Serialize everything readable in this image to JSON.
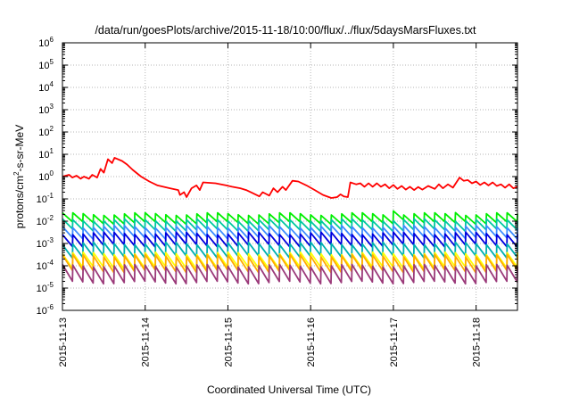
{
  "chart_data": {
    "type": "line",
    "title": "/data/run/goesPlots/archive/2015-11-18/10:00/flux/../flux/5daysMarsFluxes.txt",
    "xlabel": "Coordinated Universal Time (UTC)",
    "ylabel": {
      "prefix": "protons/cm",
      "sup": "2",
      "suffix": "-s-sr-MeV"
    },
    "y_scale": "log",
    "ylim_exponents": [
      -6,
      6
    ],
    "y_tick_labels": [
      {
        "base": "10",
        "exp": "-6"
      },
      {
        "base": "10",
        "exp": "-5"
      },
      {
        "base": "10",
        "exp": "-4"
      },
      {
        "base": "10",
        "exp": "-3"
      },
      {
        "base": "10",
        "exp": "-2"
      },
      {
        "base": "10",
        "exp": "-1"
      },
      {
        "base": "10",
        "exp": "0"
      },
      {
        "base": "10",
        "exp": "1"
      },
      {
        "base": "10",
        "exp": "2"
      },
      {
        "base": "10",
        "exp": "3"
      },
      {
        "base": "10",
        "exp": "4"
      },
      {
        "base": "10",
        "exp": "5"
      },
      {
        "base": "10",
        "exp": "6"
      }
    ],
    "x_domain_days": [
      0,
      5.5
    ],
    "x_ticks": [
      {
        "day": 0,
        "label": "2015-11-13"
      },
      {
        "day": 1,
        "label": "2015-11-14"
      },
      {
        "day": 2,
        "label": "2015-11-15"
      },
      {
        "day": 3,
        "label": "2015-11-16"
      },
      {
        "day": 4,
        "label": "2015-11-17"
      },
      {
        "day": 5,
        "label": "2015-11-18"
      }
    ],
    "grid": true,
    "legend": "none",
    "series": [
      {
        "color": "#ff0000",
        "width": 1.8,
        "points": [
          [
            0.0,
            1.0
          ],
          [
            0.08,
            1.2
          ],
          [
            0.12,
            0.9
          ],
          [
            0.17,
            1.1
          ],
          [
            0.22,
            0.8
          ],
          [
            0.26,
            1.0
          ],
          [
            0.32,
            0.8
          ],
          [
            0.36,
            1.2
          ],
          [
            0.42,
            0.9
          ],
          [
            0.46,
            2.2
          ],
          [
            0.5,
            1.5
          ],
          [
            0.55,
            6.0
          ],
          [
            0.6,
            4.0
          ],
          [
            0.63,
            7.0
          ],
          [
            0.72,
            5.0
          ],
          [
            0.78,
            3.5
          ],
          [
            0.85,
            2.0
          ],
          [
            0.95,
            1.0
          ],
          [
            1.05,
            0.6
          ],
          [
            1.15,
            0.4
          ],
          [
            1.3,
            0.3
          ],
          [
            1.4,
            0.25
          ],
          [
            1.42,
            0.15
          ],
          [
            1.47,
            0.2
          ],
          [
            1.5,
            0.12
          ],
          [
            1.56,
            0.3
          ],
          [
            1.62,
            0.4
          ],
          [
            1.66,
            0.25
          ],
          [
            1.7,
            0.55
          ],
          [
            1.85,
            0.5
          ],
          [
            1.98,
            0.4
          ],
          [
            2.05,
            0.35
          ],
          [
            2.15,
            0.3
          ],
          [
            2.22,
            0.25
          ],
          [
            2.3,
            0.18
          ],
          [
            2.38,
            0.13
          ],
          [
            2.42,
            0.2
          ],
          [
            2.5,
            0.14
          ],
          [
            2.55,
            0.3
          ],
          [
            2.6,
            0.2
          ],
          [
            2.66,
            0.35
          ],
          [
            2.7,
            0.25
          ],
          [
            2.78,
            0.65
          ],
          [
            2.85,
            0.6
          ],
          [
            2.95,
            0.4
          ],
          [
            3.05,
            0.25
          ],
          [
            3.15,
            0.15
          ],
          [
            3.25,
            0.11
          ],
          [
            3.32,
            0.12
          ],
          [
            3.36,
            0.16
          ],
          [
            3.4,
            0.13
          ],
          [
            3.45,
            0.12
          ],
          [
            3.48,
            0.55
          ],
          [
            3.55,
            0.45
          ],
          [
            3.6,
            0.5
          ],
          [
            3.65,
            0.35
          ],
          [
            3.7,
            0.5
          ],
          [
            3.75,
            0.35
          ],
          [
            3.8,
            0.5
          ],
          [
            3.85,
            0.35
          ],
          [
            3.9,
            0.45
          ],
          [
            3.95,
            0.3
          ],
          [
            4.0,
            0.42
          ],
          [
            4.05,
            0.28
          ],
          [
            4.1,
            0.38
          ],
          [
            4.15,
            0.26
          ],
          [
            4.2,
            0.35
          ],
          [
            4.25,
            0.25
          ],
          [
            4.3,
            0.34
          ],
          [
            4.35,
            0.26
          ],
          [
            4.42,
            0.38
          ],
          [
            4.5,
            0.28
          ],
          [
            4.55,
            0.45
          ],
          [
            4.6,
            0.3
          ],
          [
            4.66,
            0.45
          ],
          [
            4.72,
            0.32
          ],
          [
            4.8,
            0.9
          ],
          [
            4.85,
            0.65
          ],
          [
            4.9,
            0.7
          ],
          [
            4.95,
            0.5
          ],
          [
            5.0,
            0.6
          ],
          [
            5.05,
            0.42
          ],
          [
            5.1,
            0.55
          ],
          [
            5.15,
            0.4
          ],
          [
            5.2,
            0.55
          ],
          [
            5.25,
            0.38
          ],
          [
            5.3,
            0.45
          ],
          [
            5.35,
            0.32
          ],
          [
            5.4,
            0.45
          ],
          [
            5.45,
            0.3
          ],
          [
            5.5,
            0.35
          ]
        ]
      },
      {
        "color": "#00ee00",
        "width": 1.8,
        "base_exp": -1.68,
        "amp": 0.4,
        "step_exp": 0.05,
        "spikes": [
          [
            3.95,
            0.2
          ],
          [
            4.75,
            0.1
          ]
        ]
      },
      {
        "color": "#00c8a0",
        "width": 1.8,
        "base_exp": -1.95,
        "amp": 0.45,
        "step_exp": 0.05,
        "spikes": []
      },
      {
        "color": "#3c8cff",
        "width": 1.8,
        "base_exp": -2.25,
        "amp": 0.5,
        "step_exp": 0.05,
        "spikes": []
      },
      {
        "color": "#0000dd",
        "width": 1.8,
        "base_exp": -2.55,
        "amp": 0.55,
        "step_exp": 0.05,
        "spikes": []
      },
      {
        "color": "#00b0b0",
        "width": 1.8,
        "base_exp": -3.0,
        "amp": 0.6,
        "step_exp": 0.05,
        "spikes": []
      },
      {
        "color": "#ffff00",
        "width": 1.8,
        "base_exp": -3.45,
        "amp": 0.65,
        "step_exp": 0.05,
        "spikes": []
      },
      {
        "color": "#ffaa00",
        "width": 1.8,
        "base_exp": -3.55,
        "amp": 0.7,
        "step_exp": 0.05,
        "spikes": []
      },
      {
        "color": "#9b3a7a",
        "width": 1.8,
        "base_exp": -4.0,
        "amp": 0.75,
        "step_exp": 0.05,
        "spikes": []
      }
    ],
    "sawtooth_period_days": 0.125
  }
}
